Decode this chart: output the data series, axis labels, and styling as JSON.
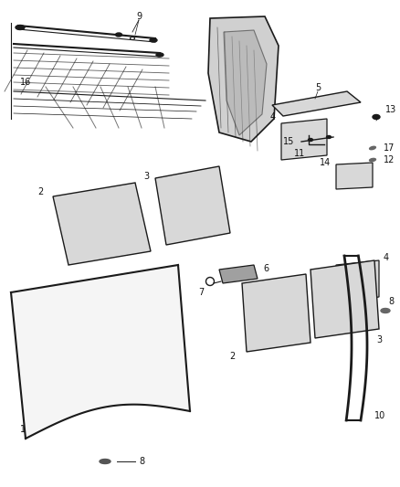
{
  "bg_color": "#ffffff",
  "fig_width": 4.38,
  "fig_height": 5.33,
  "dpi": 100,
  "line_color": "#1a1a1a",
  "label_fontsize": 7,
  "label_color": "#111111",
  "parts_layout": {
    "windshield": {
      "x": [
        0.03,
        0.26,
        0.2,
        0.01
      ],
      "y": [
        0.18,
        0.14,
        0.02,
        0.05
      ]
    },
    "glass2_left": {
      "x": [
        0.04,
        0.17,
        0.2,
        0.07
      ],
      "y": [
        0.46,
        0.5,
        0.38,
        0.34
      ]
    },
    "glass3_left": {
      "x": [
        0.23,
        0.33,
        0.35,
        0.25
      ],
      "y": [
        0.52,
        0.55,
        0.42,
        0.39
      ]
    },
    "glass4_center": {
      "x": [
        0.47,
        0.57,
        0.58,
        0.48
      ],
      "y": [
        0.58,
        0.62,
        0.48,
        0.44
      ]
    },
    "glass2_center": {
      "x": [
        0.38,
        0.49,
        0.5,
        0.39
      ],
      "y": [
        0.32,
        0.28,
        0.16,
        0.2
      ]
    },
    "glass3_center": {
      "x": [
        0.51,
        0.61,
        0.62,
        0.52
      ],
      "y": [
        0.28,
        0.25,
        0.13,
        0.16
      ]
    },
    "glass4_right": {
      "x": [
        0.76,
        0.84,
        0.84,
        0.76
      ],
      "y": [
        0.42,
        0.44,
        0.32,
        0.3
      ]
    },
    "glass5_strip": {
      "x": [
        0.57,
        0.87,
        0.89,
        0.61
      ],
      "y": [
        0.73,
        0.75,
        0.71,
        0.69
      ]
    },
    "glass14": {
      "x": [
        0.69,
        0.8,
        0.8,
        0.69
      ],
      "y": [
        0.57,
        0.59,
        0.47,
        0.45
      ]
    }
  }
}
